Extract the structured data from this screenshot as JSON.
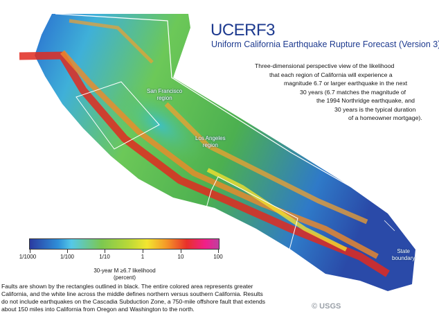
{
  "title": "UCERF3",
  "subtitle": "Uniform California Earthquake Rupture Forecast (Version 3)",
  "description_lines": [
    "Three-dimensional perspective view of the likelihood",
    "that each region of California will experience a",
    "magnitude 6.7 or larger earthquake in the next",
    "30 years (6.7 matches the magnitude of",
    "the 1994 Northridge earthquake, and",
    "30 years is the typical duration",
    "of a homeowner mortgage)."
  ],
  "map_labels": {
    "san_francisco": [
      "San Francisco",
      "region"
    ],
    "los_angeles": [
      "Los Angeles",
      "region"
    ],
    "state_boundary": [
      "State",
      "boundary"
    ]
  },
  "legend": {
    "ticks": [
      "1/1000",
      "1/100",
      "1/10",
      "1",
      "10",
      "100"
    ],
    "title_lines": [
      "30-year M ≥6.7 likelihood",
      "(percent)"
    ],
    "colors": [
      "#2a3aa0",
      "#55c8e8",
      "#7cc850",
      "#f3e630",
      "#e8302a",
      "#f0208a"
    ]
  },
  "caption_lines": [
    "Faults are shown by the rectangles outlined in black. The entire colored area represents greater",
    "California, and the white line across the middle defines northern versus southern California. Results",
    "do not include earthquakes on the Cascadia Subduction Zone, a 750-mile offshore fault that extends",
    "about 150 miles into California from Oregon and Washington to the north."
  ],
  "credit": "© USGS"
}
